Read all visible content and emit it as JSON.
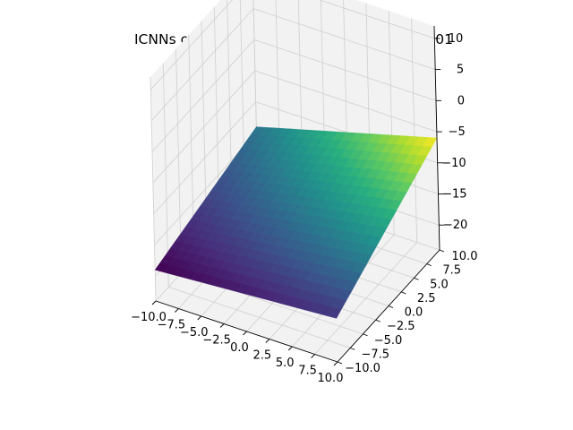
{
  "chart_data": {
    "type": "surface3d",
    "title": "ICNNs on holdertable at t = 100 with lr0.0001",
    "xlabel": "",
    "ylabel": "",
    "zlabel": "",
    "xlim": [
      -10,
      10
    ],
    "ylim": [
      -10,
      10
    ],
    "zlim": [
      -24,
      12
    ],
    "x_ticks": [
      "−10.0",
      "−7.5",
      "−5.0",
      "−2.5",
      "0.0",
      "2.5",
      "5.0",
      "7.5",
      "10.0"
    ],
    "y_ticks": [
      "−10.0",
      "−7.5",
      "−5.0",
      "−2.5",
      "0.0",
      "2.5",
      "5.0",
      "7.5",
      "10.0"
    ],
    "z_ticks": [
      "−20",
      "−15",
      "−10",
      "−5",
      "0",
      "5",
      "10"
    ],
    "x_tick_values": [
      -10,
      -7.5,
      -5,
      -2.5,
      0,
      2.5,
      5,
      7.5,
      10
    ],
    "y_tick_values": [
      -10,
      -7.5,
      -5,
      -2.5,
      0,
      2.5,
      5,
      7.5,
      10
    ],
    "z_tick_values": [
      -20,
      -15,
      -10,
      -5,
      0,
      5,
      10
    ],
    "surface": {
      "description_of_values": "z at the four grid corners (x, y)",
      "corners": [
        {
          "x": -10,
          "y": -10,
          "z": -19
        },
        {
          "x": 10,
          "y": -10,
          "z": -17
        },
        {
          "x": -10,
          "y": 10,
          "z": -14
        },
        {
          "x": 10,
          "y": 10,
          "z": -6
        }
      ],
      "colormap": "viridis"
    },
    "grid": true,
    "colors": {
      "pane": "#f2f2f2",
      "grid": "#cfcfcf",
      "axis": "#000000",
      "viridis": [
        "#440154",
        "#472d7b",
        "#3b528b",
        "#2c728e",
        "#21918c",
        "#28ae80",
        "#5ec962",
        "#addc30",
        "#fde725"
      ]
    }
  }
}
